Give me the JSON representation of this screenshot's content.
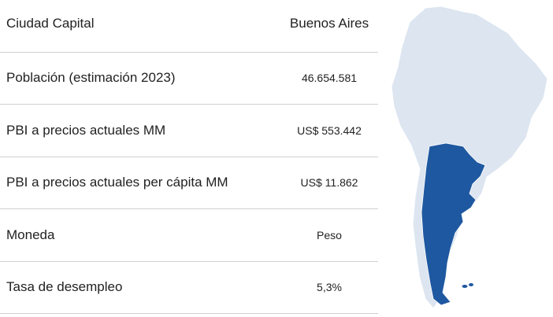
{
  "table": {
    "rows": [
      [
        "Ciudad Capital",
        "Buenos Aires"
      ],
      [
        "Población (estimación 2023)",
        "46.654.581"
      ],
      [
        "PBI a precios actuales MM",
        "US$ 553.442"
      ],
      [
        "PBI a precios actuales per cápita MM",
        "US$ 11.862"
      ],
      [
        "Moneda",
        "Peso"
      ],
      [
        "Tasa de desempleo",
        "5,3%"
      ]
    ]
  }
}
